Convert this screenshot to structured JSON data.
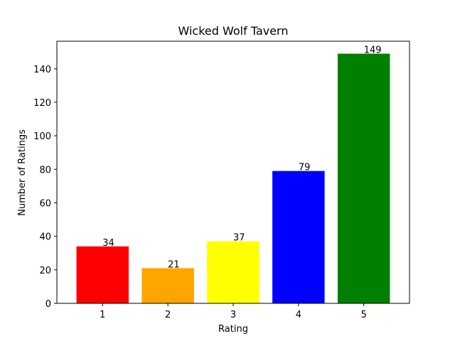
{
  "chart_data": {
    "type": "bar",
    "title": "Wicked Wolf Tavern",
    "xlabel": "Rating",
    "ylabel": "Number of Ratings",
    "categories": [
      "1",
      "2",
      "3",
      "4",
      "5"
    ],
    "values": [
      34,
      21,
      37,
      79,
      149
    ],
    "data_labels": [
      "34",
      "21",
      "37",
      "79",
      "149"
    ],
    "colors": [
      "#ff0000",
      "#ffa500",
      "#ffff00",
      "#0000ff",
      "#008000"
    ],
    "ylim": [
      0,
      156.45
    ],
    "yticks": [
      0,
      20,
      40,
      60,
      80,
      100,
      120,
      140
    ],
    "grid": false,
    "legend": "none"
  }
}
